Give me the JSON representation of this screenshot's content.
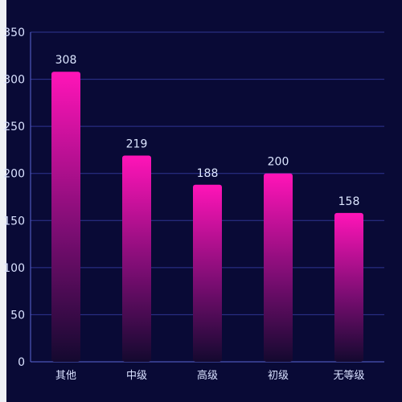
{
  "chart_data": {
    "type": "bar",
    "categories": [
      "其他",
      "中级",
      "高级",
      "初级",
      "无等级"
    ],
    "values": [
      308,
      219,
      188,
      200,
      158
    ],
    "y_ticks": [
      "350",
      "300",
      "250",
      "200",
      "150",
      "100",
      "50",
      "0"
    ],
    "ylim": [
      0,
      350
    ],
    "grid": true,
    "colors": {
      "bar_top": "#ff14b8",
      "bar_bottom": "#1a0b34",
      "grid": "#2f3592",
      "axis": "#5a67d6",
      "text": "#d9e1ff",
      "background": "#090a36"
    }
  }
}
